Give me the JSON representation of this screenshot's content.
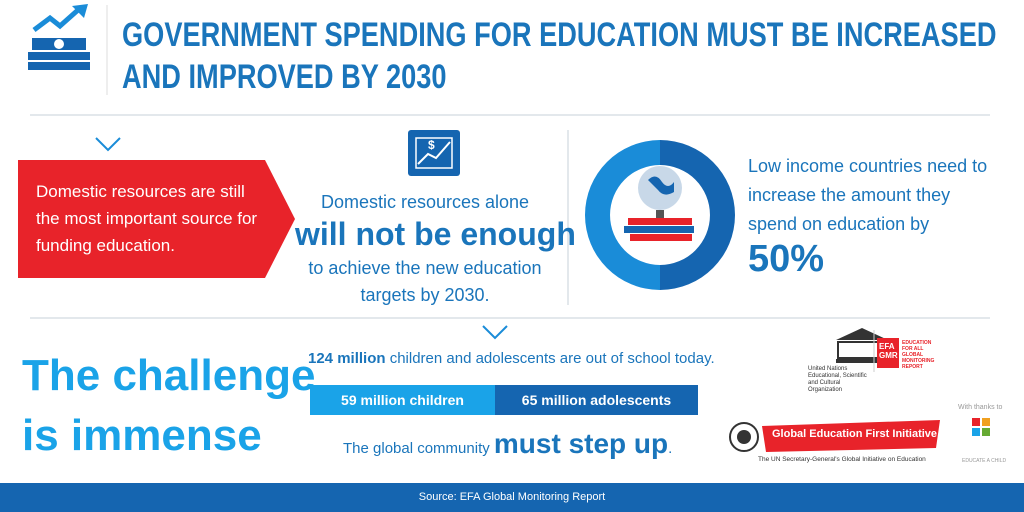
{
  "header": {
    "title_lines": [
      "GOVERNMENT SPENDING FOR EDUCATION MUST BE INCREASED",
      "AND IMPROVED BY 2030"
    ]
  },
  "left_panel": {
    "text": "Domestic resources are still the most important source for funding education."
  },
  "middle_panel": {
    "line1": "Domestic resources alone",
    "emphasis": "will not be enough",
    "line2": "to achieve the new education",
    "line3": "targets by 2030."
  },
  "right_panel": {
    "text": "Low income countries need to increase the amount they spend on education by",
    "figure": "50%"
  },
  "challenge": {
    "line1": "The challenge",
    "line2": "is immense"
  },
  "stats": {
    "highlight": "124 million",
    "text": " children and adolescents are out of school today.",
    "segments": [
      "59 million children",
      "65 million adolescents"
    ],
    "call_prefix": "The global community ",
    "call_emphasis": "must step up",
    "call_suffix": "."
  },
  "logos": {
    "unesco": "United Nations Educational, Scientific and Cultural Organization",
    "efa": "EFA GMR",
    "efa_sub": "EDUCATION FOR ALL GLOBAL MONITORING REPORT",
    "gefi": "Global Education First Initiative",
    "gefi_sub": "The UN Secretary-General's Global Initiative on Education",
    "thanks": "With thanks to",
    "eac": "EDUCATE A CHILD"
  },
  "footer": {
    "source": "Source: EFA Global Monitoring Report"
  }
}
